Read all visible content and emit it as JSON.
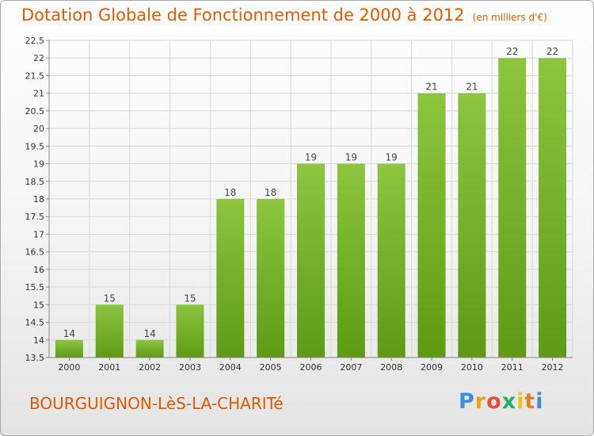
{
  "header": {
    "title": "Dotation Globale de Fonctionnement de 2000 à 2012",
    "unit": "(en milliers d'€)"
  },
  "footer": {
    "commune": "BOURGUIGNON-LèS-LA-CHARITé",
    "logo": "Proxiti"
  },
  "chart_data": {
    "type": "bar",
    "title": "Dotation Globale de Fonctionnement de 2000 à 2012",
    "subtitle": "(en milliers d'€)",
    "xlabel": "",
    "ylabel": "",
    "categories": [
      "2000",
      "2001",
      "2002",
      "2003",
      "2004",
      "2005",
      "2006",
      "2007",
      "2008",
      "2009",
      "2010",
      "2011",
      "2012"
    ],
    "values": [
      14,
      15,
      14,
      15,
      18,
      18,
      19,
      19,
      19,
      21,
      21,
      22,
      22
    ],
    "data_labels": [
      "14",
      "15",
      "14",
      "15",
      "18",
      "18",
      "19",
      "19",
      "19",
      "21",
      "21",
      "22",
      "22"
    ],
    "ylim": [
      13.5,
      22.5
    ],
    "yticks": [
      "13.5",
      "14",
      "14.5",
      "15",
      "15.5",
      "16",
      "16.5",
      "17",
      "17.5",
      "18",
      "18.5",
      "19",
      "19.5",
      "20",
      "20.5",
      "21",
      "21.5",
      "22",
      "22.5"
    ],
    "grid": true,
    "bar_color": "#8cc63f",
    "bar_color_dark": "#5f9a14"
  }
}
